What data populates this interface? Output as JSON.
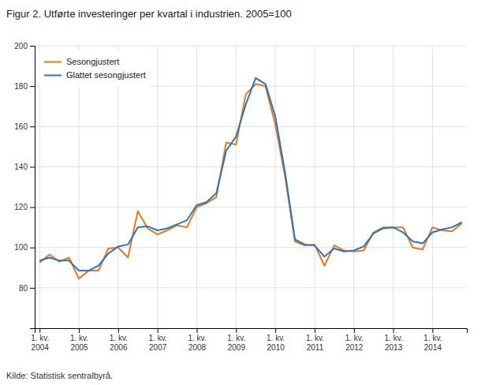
{
  "chart_data": {
    "type": "line",
    "title": "Figur 2. Utførte investeringer per kvartal i industrien. 2005=100",
    "annotations": [
      "Kilde: Statistisk sentralbyrå."
    ],
    "categories": [
      "1. kv.\n2004",
      null,
      null,
      null,
      "1. kv.\n2005",
      null,
      null,
      null,
      "1. kv.\n2006",
      null,
      null,
      null,
      "1. kv.\n2007",
      null,
      null,
      null,
      "1. kv.\n2008",
      null,
      null,
      null,
      "1. kv.\n2009",
      null,
      null,
      null,
      "1. kv.\n2010",
      null,
      null,
      null,
      "1. kv.\n2011",
      null,
      null,
      null,
      "1. kv.\n2012",
      null,
      null,
      null,
      "1. kv.\n2013",
      null,
      null,
      null,
      "1. kv.\n2014",
      null,
      null,
      null
    ],
    "series": [
      {
        "name": "Sesongjustert",
        "color": "#E87722",
        "values": [
          92.5,
          96.5,
          93.0,
          95.0,
          84.5,
          88.5,
          88.5,
          99.5,
          100.0,
          95.0,
          118.0,
          109.5,
          106.5,
          108.5,
          111.0,
          110.0,
          120.0,
          122.0,
          125.0,
          152.0,
          151.0,
          176.0,
          181.0,
          180.0,
          161.0,
          135.0,
          103.0,
          101.0,
          101.5,
          91.0,
          101.0,
          98.5,
          98.0,
          98.5,
          107.5,
          110.0,
          110.0,
          110.0,
          100.0,
          99.0,
          110.0,
          108.5,
          108.0,
          112.0
        ]
      },
      {
        "name": "Glattet sesongjustert",
        "color": "#2E75B6",
        "values": [
          93.5,
          95.0,
          93.5,
          93.5,
          88.5,
          88.5,
          91.0,
          97.0,
          100.5,
          101.5,
          110.0,
          110.5,
          108.5,
          109.5,
          111.5,
          113.5,
          121.0,
          122.5,
          127.0,
          148.0,
          155.0,
          171.0,
          184.0,
          181.0,
          165.0,
          137.0,
          104.0,
          101.5,
          101.0,
          95.5,
          99.5,
          98.0,
          98.5,
          100.5,
          107.0,
          109.5,
          110.0,
          107.5,
          103.0,
          102.0,
          107.5,
          109.0,
          110.0,
          112.5
        ]
      }
    ],
    "ylim": [
      60,
      200
    ],
    "yticks": [
      80,
      100,
      120,
      140,
      160,
      180,
      200
    ],
    "grid": true,
    "legend": "upper left"
  }
}
